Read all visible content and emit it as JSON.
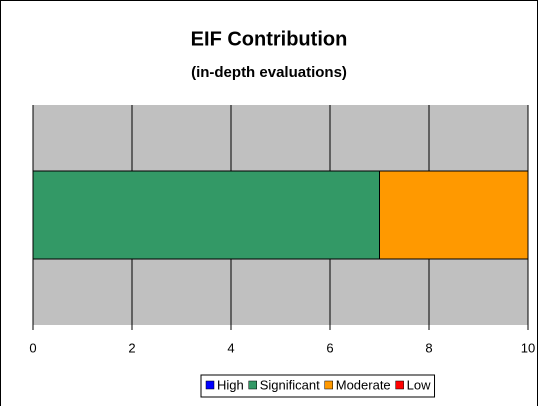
{
  "chart_data": {
    "type": "stacked-bar-horizontal",
    "title": "EIF Contribution",
    "subtitle": "(in-depth evaluations)",
    "categories": [
      null
    ],
    "series": [
      {
        "name": "High",
        "color": "#0000ff",
        "values": [
          0
        ]
      },
      {
        "name": "Significant",
        "color": "#339966",
        "values": [
          7
        ]
      },
      {
        "name": "Moderate",
        "color": "#ff9900",
        "values": [
          3
        ]
      },
      {
        "name": "Low",
        "color": "#ff0000",
        "values": [
          0
        ]
      }
    ],
    "xlim": [
      0,
      10
    ],
    "xticks": [
      0,
      2,
      4,
      6,
      8,
      10
    ],
    "grid": true,
    "plot_color": "#c0c0c0",
    "legend": "bottom"
  }
}
